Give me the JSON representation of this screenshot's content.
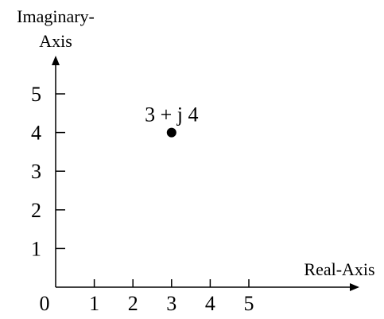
{
  "chart_data": {
    "type": "scatter",
    "x_axis_label": "Real-Axis",
    "y_axis_label_line1": "Imaginary-",
    "y_axis_label_line2": "Axis",
    "origin_label": "0",
    "x_ticks": [
      "1",
      "2",
      "3",
      "4",
      "5"
    ],
    "y_ticks": [
      "1",
      "2",
      "3",
      "4",
      "5"
    ],
    "xlim": [
      0,
      5
    ],
    "ylim": [
      0,
      5
    ],
    "grid": false,
    "points": [
      {
        "x": 3,
        "y": 4,
        "label": "3 + j 4"
      }
    ]
  },
  "colors": {
    "axis": "#000000",
    "point": "#000000",
    "background": "#ffffff"
  }
}
